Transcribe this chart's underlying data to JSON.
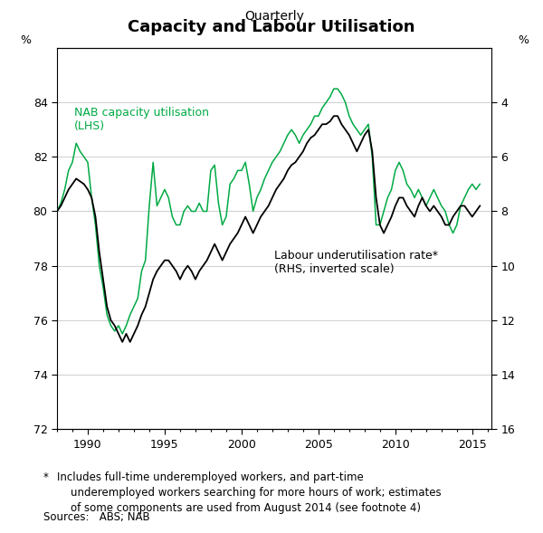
{
  "title": "Capacity and Labour Utilisation",
  "subtitle": "Quarterly",
  "lhs_label": "%",
  "rhs_label": "%",
  "lhs_ylim": [
    72,
    86
  ],
  "lhs_yticks": [
    72,
    74,
    76,
    78,
    80,
    82,
    84
  ],
  "rhs_ylim": [
    2,
    16
  ],
  "rhs_yticks": [
    4,
    6,
    8,
    10,
    12,
    14,
    16
  ],
  "xlim_start": 1988.0,
  "xlim_end": 2016.25,
  "xticks": [
    1990,
    1995,
    2000,
    2005,
    2010,
    2015
  ],
  "nab_color": "#00aa44",
  "labour_color": "#000000",
  "footnote_star": "*",
  "footnote_text": "    Includes full-time underemployed workers, and part-time\n    underemployed workers searching for more hours of work; estimates\n    of some components are used from August 2014 (see footnote 4)",
  "sources": "Sources:   ABS; NAB",
  "nab_label": "NAB capacity utilisation\n(LHS)",
  "labour_label": "Labour underutilisation rate*\n(RHS, inverted scale)",
  "nab_data": [
    [
      1988.0,
      80.0
    ],
    [
      1988.25,
      80.3
    ],
    [
      1988.5,
      80.8
    ],
    [
      1988.75,
      81.5
    ],
    [
      1989.0,
      81.8
    ],
    [
      1989.25,
      82.5
    ],
    [
      1989.5,
      82.2
    ],
    [
      1989.75,
      82.0
    ],
    [
      1990.0,
      81.8
    ],
    [
      1990.25,
      80.5
    ],
    [
      1990.5,
      79.5
    ],
    [
      1990.75,
      78.0
    ],
    [
      1991.0,
      77.2
    ],
    [
      1991.25,
      76.2
    ],
    [
      1991.5,
      75.8
    ],
    [
      1991.75,
      75.6
    ],
    [
      1992.0,
      75.8
    ],
    [
      1992.25,
      75.5
    ],
    [
      1992.5,
      75.8
    ],
    [
      1992.75,
      76.2
    ],
    [
      1993.0,
      76.5
    ],
    [
      1993.25,
      76.8
    ],
    [
      1993.5,
      77.8
    ],
    [
      1993.75,
      78.2
    ],
    [
      1994.0,
      80.2
    ],
    [
      1994.25,
      81.8
    ],
    [
      1994.5,
      80.2
    ],
    [
      1994.75,
      80.5
    ],
    [
      1995.0,
      80.8
    ],
    [
      1995.25,
      80.5
    ],
    [
      1995.5,
      79.8
    ],
    [
      1995.75,
      79.5
    ],
    [
      1996.0,
      79.5
    ],
    [
      1996.25,
      80.0
    ],
    [
      1996.5,
      80.2
    ],
    [
      1996.75,
      80.0
    ],
    [
      1997.0,
      80.0
    ],
    [
      1997.25,
      80.3
    ],
    [
      1997.5,
      80.0
    ],
    [
      1997.75,
      80.0
    ],
    [
      1998.0,
      81.5
    ],
    [
      1998.25,
      81.7
    ],
    [
      1998.5,
      80.3
    ],
    [
      1998.75,
      79.5
    ],
    [
      1999.0,
      79.8
    ],
    [
      1999.25,
      81.0
    ],
    [
      1999.5,
      81.2
    ],
    [
      1999.75,
      81.5
    ],
    [
      2000.0,
      81.5
    ],
    [
      2000.25,
      81.8
    ],
    [
      2000.5,
      81.0
    ],
    [
      2000.75,
      80.0
    ],
    [
      2001.0,
      80.5
    ],
    [
      2001.25,
      80.8
    ],
    [
      2001.5,
      81.2
    ],
    [
      2001.75,
      81.5
    ],
    [
      2002.0,
      81.8
    ],
    [
      2002.25,
      82.0
    ],
    [
      2002.5,
      82.2
    ],
    [
      2002.75,
      82.5
    ],
    [
      2003.0,
      82.8
    ],
    [
      2003.25,
      83.0
    ],
    [
      2003.5,
      82.8
    ],
    [
      2003.75,
      82.5
    ],
    [
      2004.0,
      82.8
    ],
    [
      2004.25,
      83.0
    ],
    [
      2004.5,
      83.2
    ],
    [
      2004.75,
      83.5
    ],
    [
      2005.0,
      83.5
    ],
    [
      2005.25,
      83.8
    ],
    [
      2005.5,
      84.0
    ],
    [
      2005.75,
      84.2
    ],
    [
      2006.0,
      84.5
    ],
    [
      2006.25,
      84.5
    ],
    [
      2006.5,
      84.3
    ],
    [
      2006.75,
      84.0
    ],
    [
      2007.0,
      83.5
    ],
    [
      2007.25,
      83.2
    ],
    [
      2007.5,
      83.0
    ],
    [
      2007.75,
      82.8
    ],
    [
      2008.0,
      83.0
    ],
    [
      2008.25,
      83.2
    ],
    [
      2008.5,
      82.0
    ],
    [
      2008.75,
      79.5
    ],
    [
      2009.0,
      79.5
    ],
    [
      2009.25,
      80.0
    ],
    [
      2009.5,
      80.5
    ],
    [
      2009.75,
      80.8
    ],
    [
      2010.0,
      81.5
    ],
    [
      2010.25,
      81.8
    ],
    [
      2010.5,
      81.5
    ],
    [
      2010.75,
      81.0
    ],
    [
      2011.0,
      80.8
    ],
    [
      2011.25,
      80.5
    ],
    [
      2011.5,
      80.8
    ],
    [
      2011.75,
      80.5
    ],
    [
      2012.0,
      80.2
    ],
    [
      2012.25,
      80.5
    ],
    [
      2012.5,
      80.8
    ],
    [
      2012.75,
      80.5
    ],
    [
      2013.0,
      80.2
    ],
    [
      2013.25,
      80.0
    ],
    [
      2013.5,
      79.5
    ],
    [
      2013.75,
      79.2
    ],
    [
      2014.0,
      79.5
    ],
    [
      2014.25,
      80.2
    ],
    [
      2014.5,
      80.5
    ],
    [
      2014.75,
      80.8
    ],
    [
      2015.0,
      81.0
    ],
    [
      2015.25,
      80.8
    ],
    [
      2015.5,
      81.0
    ]
  ],
  "labour_data": [
    [
      1988.0,
      8.0
    ],
    [
      1988.25,
      7.8
    ],
    [
      1988.5,
      7.5
    ],
    [
      1988.75,
      7.2
    ],
    [
      1989.0,
      7.0
    ],
    [
      1989.25,
      6.8
    ],
    [
      1989.5,
      6.9
    ],
    [
      1989.75,
      7.0
    ],
    [
      1990.0,
      7.2
    ],
    [
      1990.25,
      7.5
    ],
    [
      1990.5,
      8.2
    ],
    [
      1990.75,
      9.5
    ],
    [
      1991.0,
      10.5
    ],
    [
      1991.25,
      11.5
    ],
    [
      1991.5,
      12.0
    ],
    [
      1991.75,
      12.2
    ],
    [
      1992.0,
      12.5
    ],
    [
      1992.25,
      12.8
    ],
    [
      1992.5,
      12.5
    ],
    [
      1992.75,
      12.8
    ],
    [
      1993.0,
      12.5
    ],
    [
      1993.25,
      12.2
    ],
    [
      1993.5,
      11.8
    ],
    [
      1993.75,
      11.5
    ],
    [
      1994.0,
      11.0
    ],
    [
      1994.25,
      10.5
    ],
    [
      1994.5,
      10.2
    ],
    [
      1994.75,
      10.0
    ],
    [
      1995.0,
      9.8
    ],
    [
      1995.25,
      9.8
    ],
    [
      1995.5,
      10.0
    ],
    [
      1995.75,
      10.2
    ],
    [
      1996.0,
      10.5
    ],
    [
      1996.25,
      10.2
    ],
    [
      1996.5,
      10.0
    ],
    [
      1996.75,
      10.2
    ],
    [
      1997.0,
      10.5
    ],
    [
      1997.25,
      10.2
    ],
    [
      1997.5,
      10.0
    ],
    [
      1997.75,
      9.8
    ],
    [
      1998.0,
      9.5
    ],
    [
      1998.25,
      9.2
    ],
    [
      1998.5,
      9.5
    ],
    [
      1998.75,
      9.8
    ],
    [
      1999.0,
      9.5
    ],
    [
      1999.25,
      9.2
    ],
    [
      1999.5,
      9.0
    ],
    [
      1999.75,
      8.8
    ],
    [
      2000.0,
      8.5
    ],
    [
      2000.25,
      8.2
    ],
    [
      2000.5,
      8.5
    ],
    [
      2000.75,
      8.8
    ],
    [
      2001.0,
      8.5
    ],
    [
      2001.25,
      8.2
    ],
    [
      2001.5,
      8.0
    ],
    [
      2001.75,
      7.8
    ],
    [
      2002.0,
      7.5
    ],
    [
      2002.25,
      7.2
    ],
    [
      2002.5,
      7.0
    ],
    [
      2002.75,
      6.8
    ],
    [
      2003.0,
      6.5
    ],
    [
      2003.25,
      6.3
    ],
    [
      2003.5,
      6.2
    ],
    [
      2003.75,
      6.0
    ],
    [
      2004.0,
      5.8
    ],
    [
      2004.25,
      5.5
    ],
    [
      2004.5,
      5.3
    ],
    [
      2004.75,
      5.2
    ],
    [
      2005.0,
      5.0
    ],
    [
      2005.25,
      4.8
    ],
    [
      2005.5,
      4.8
    ],
    [
      2005.75,
      4.7
    ],
    [
      2006.0,
      4.5
    ],
    [
      2006.25,
      4.5
    ],
    [
      2006.5,
      4.8
    ],
    [
      2006.75,
      5.0
    ],
    [
      2007.0,
      5.2
    ],
    [
      2007.25,
      5.5
    ],
    [
      2007.5,
      5.8
    ],
    [
      2007.75,
      5.5
    ],
    [
      2008.0,
      5.2
    ],
    [
      2008.25,
      5.0
    ],
    [
      2008.5,
      5.8
    ],
    [
      2008.75,
      7.5
    ],
    [
      2009.0,
      8.5
    ],
    [
      2009.25,
      8.8
    ],
    [
      2009.5,
      8.5
    ],
    [
      2009.75,
      8.2
    ],
    [
      2010.0,
      7.8
    ],
    [
      2010.25,
      7.5
    ],
    [
      2010.5,
      7.5
    ],
    [
      2010.75,
      7.8
    ],
    [
      2011.0,
      8.0
    ],
    [
      2011.25,
      8.2
    ],
    [
      2011.5,
      7.8
    ],
    [
      2011.75,
      7.5
    ],
    [
      2012.0,
      7.8
    ],
    [
      2012.25,
      8.0
    ],
    [
      2012.5,
      7.8
    ],
    [
      2012.75,
      8.0
    ],
    [
      2013.0,
      8.2
    ],
    [
      2013.25,
      8.5
    ],
    [
      2013.5,
      8.5
    ],
    [
      2013.75,
      8.2
    ],
    [
      2014.0,
      8.0
    ],
    [
      2014.25,
      7.8
    ],
    [
      2014.5,
      7.8
    ],
    [
      2014.75,
      8.0
    ],
    [
      2015.0,
      8.2
    ],
    [
      2015.25,
      8.0
    ],
    [
      2015.5,
      7.8
    ]
  ]
}
